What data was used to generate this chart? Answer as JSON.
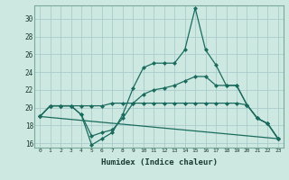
{
  "xlabel": "Humidex (Indice chaleur)",
  "bg_color": "#cce8e0",
  "grid_color": "#aacccc",
  "line_color": "#1a6b5e",
  "xlim": [
    -0.5,
    23.5
  ],
  "ylim": [
    15.5,
    31.5
  ],
  "xtick_labels": [
    "0",
    "1",
    "2",
    "3",
    "4",
    "5",
    "6",
    "7",
    "8",
    "9",
    "10",
    "11",
    "12",
    "13",
    "14",
    "15",
    "16",
    "17",
    "18",
    "19",
    "20",
    "21",
    "22",
    "23"
  ],
  "ytick_values": [
    16,
    18,
    20,
    22,
    24,
    26,
    28,
    30
  ],
  "series": [
    {
      "x": [
        0,
        1,
        2,
        3,
        4,
        5,
        6,
        7,
        8,
        9,
        10,
        11,
        12,
        13,
        14,
        15,
        16,
        17,
        18,
        19,
        20,
        21,
        22,
        23
      ],
      "y": [
        19.0,
        20.2,
        20.2,
        20.2,
        19.2,
        15.8,
        16.5,
        17.2,
        19.2,
        22.2,
        24.5,
        25.0,
        25.0,
        25.0,
        26.5,
        31.2,
        26.5,
        24.8,
        22.5,
        22.5,
        20.3,
        18.8,
        18.2,
        16.5
      ]
    },
    {
      "x": [
        0,
        1,
        2,
        3,
        4,
        5,
        6,
        7,
        8,
        9,
        10,
        11,
        12,
        13,
        14,
        15,
        16,
        17,
        18,
        19,
        20,
        21,
        22,
        23
      ],
      "y": [
        19.0,
        20.2,
        20.2,
        20.2,
        20.2,
        20.2,
        20.2,
        20.5,
        20.5,
        20.5,
        20.5,
        20.5,
        20.5,
        20.5,
        20.5,
        20.5,
        20.5,
        20.5,
        20.5,
        20.5,
        20.3,
        18.8,
        18.2,
        16.5
      ]
    },
    {
      "x": [
        0,
        1,
        2,
        3,
        4,
        5,
        6,
        7,
        8,
        9,
        10,
        11,
        12,
        13,
        14,
        15,
        16,
        17,
        18,
        19,
        20,
        21,
        22,
        23
      ],
      "y": [
        19.0,
        20.2,
        20.2,
        20.2,
        19.2,
        16.8,
        17.2,
        17.5,
        18.8,
        20.5,
        21.5,
        22.0,
        22.2,
        22.5,
        23.0,
        23.5,
        23.5,
        22.5,
        22.5,
        22.5,
        20.3,
        18.8,
        18.2,
        16.5
      ]
    },
    {
      "x": [
        0,
        23
      ],
      "y": [
        19.0,
        16.5
      ]
    }
  ]
}
